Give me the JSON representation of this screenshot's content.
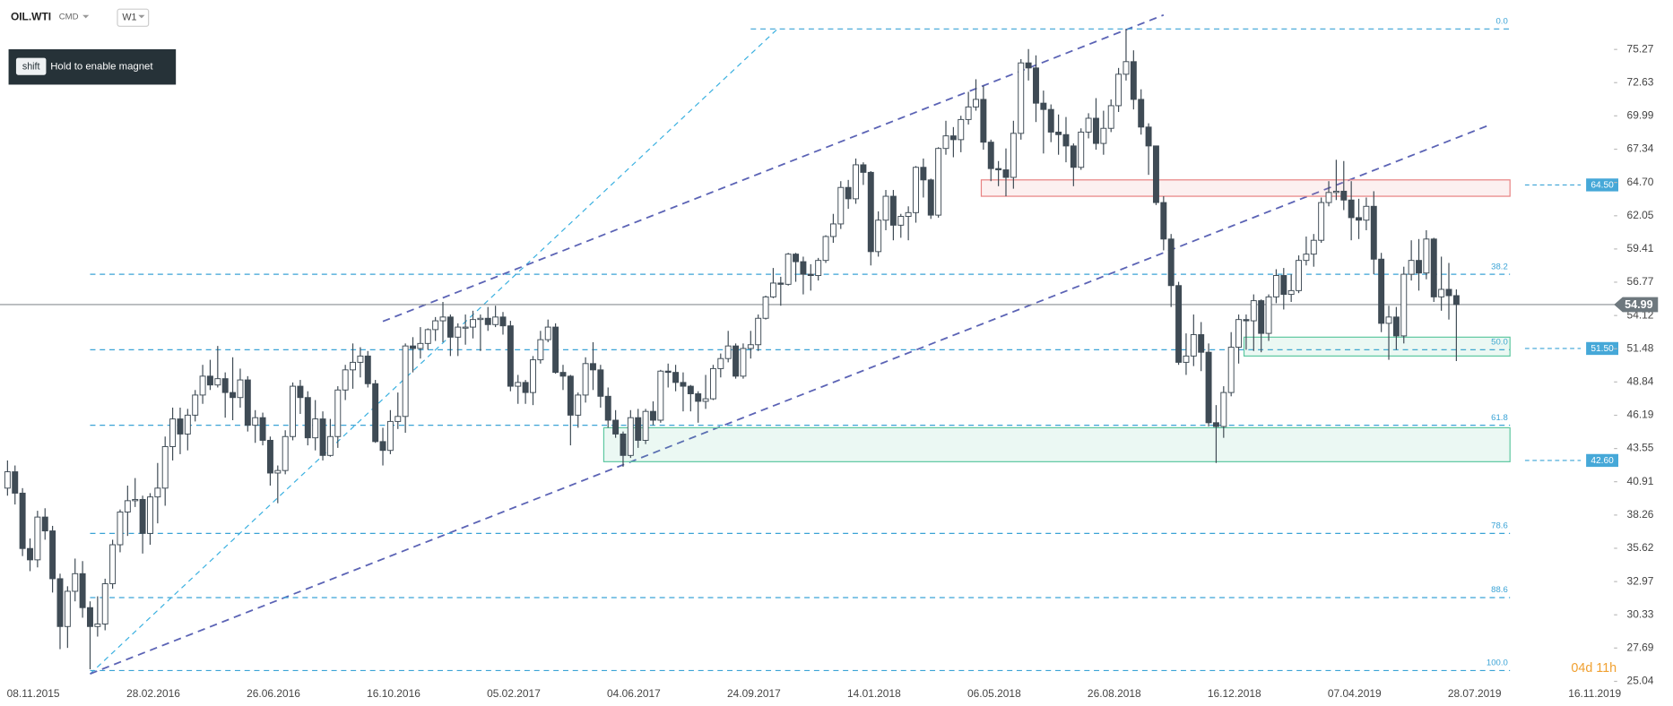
{
  "header": {
    "symbol": "OIL.WTI",
    "market": "CMD",
    "timeframe": "W1"
  },
  "hint": {
    "key": "shift",
    "text": "Hold to enable magnet"
  },
  "countdown": "04d 11h",
  "chart_data": {
    "type": "candlestick",
    "up_color": "#ffffff",
    "down_color": "#3f4b55",
    "outline_color": "#3f4b55",
    "categories": [
      null,
      null,
      null,
      "08.11.2015",
      null,
      null,
      null,
      null,
      null,
      null,
      null,
      null,
      null,
      null,
      null,
      null,
      null,
      null,
      null,
      "28.02.2016",
      null,
      null,
      null,
      null,
      null,
      null,
      null,
      null,
      null,
      null,
      null,
      null,
      null,
      null,
      null,
      "26.06.2016",
      null,
      null,
      null,
      null,
      null,
      null,
      null,
      null,
      null,
      null,
      null,
      null,
      null,
      null,
      null,
      "16.10.2016",
      null,
      null,
      null,
      null,
      null,
      null,
      null,
      null,
      null,
      null,
      null,
      null,
      null,
      null,
      null,
      "05.02.2017",
      null,
      null,
      null,
      null,
      null,
      null,
      null,
      null,
      null,
      null,
      null,
      null,
      null,
      null,
      null,
      "04.06.2017",
      null,
      null,
      null,
      null,
      null,
      null,
      null,
      null,
      null,
      null,
      null,
      null,
      null,
      null,
      null,
      "24.09.2017",
      null,
      null,
      null,
      null,
      null,
      null,
      null,
      null,
      null,
      null,
      null,
      null,
      null,
      null,
      null,
      "14.01.2018",
      null,
      null,
      null,
      null,
      null,
      null,
      null,
      null,
      null,
      null,
      null,
      null,
      null,
      null,
      null,
      "06.05.2018",
      null,
      null,
      null,
      null,
      null,
      null,
      null,
      null,
      null,
      null,
      null,
      null,
      null,
      null,
      null,
      "26.08.2018",
      null,
      null,
      null,
      null,
      null,
      null,
      null,
      null,
      null,
      null,
      null,
      null,
      null,
      null,
      null,
      "16.12.2018",
      null,
      null,
      null,
      null,
      null,
      null,
      null,
      null,
      null,
      null,
      null,
      null,
      null,
      null,
      null,
      "07.04.2019",
      null,
      null,
      null,
      null,
      null,
      null,
      null,
      null,
      null,
      null,
      null,
      null,
      null,
      null,
      null,
      "28.07.2019",
      null,
      null,
      null,
      null,
      null,
      null,
      null,
      null,
      null,
      null,
      null,
      null,
      null,
      null,
      null,
      "16.11.2019",
      null,
      null
    ],
    "ohlc": [
      [
        40.4,
        42.6,
        39.8,
        41.7
      ],
      [
        41.7,
        42.2,
        39.1,
        40.0
      ],
      [
        40.0,
        40.4,
        35.0,
        35.6
      ],
      [
        35.6,
        36.4,
        33.8,
        34.7
      ],
      [
        34.7,
        38.6,
        34.1,
        38.1
      ],
      [
        38.1,
        38.8,
        36.3,
        37.0
      ],
      [
        37.0,
        37.4,
        32.1,
        33.2
      ],
      [
        33.2,
        33.6,
        27.6,
        29.4
      ],
      [
        29.4,
        32.6,
        27.7,
        32.2
      ],
      [
        32.2,
        34.8,
        31.4,
        33.6
      ],
      [
        33.6,
        34.6,
        30.1,
        30.9
      ],
      [
        30.9,
        31.4,
        26.0,
        29.4
      ],
      [
        29.4,
        31.8,
        28.6,
        29.6
      ],
      [
        29.6,
        33.2,
        29.1,
        32.8
      ],
      [
        32.8,
        36.3,
        32.4,
        35.9
      ],
      [
        35.9,
        38.7,
        35.3,
        38.5
      ],
      [
        38.5,
        40.6,
        36.6,
        39.4
      ],
      [
        39.4,
        41.2,
        38.9,
        39.5
      ],
      [
        39.5,
        39.8,
        35.2,
        36.8
      ],
      [
        36.8,
        40.0,
        35.9,
        39.7
      ],
      [
        39.7,
        42.4,
        37.6,
        40.4
      ],
      [
        40.4,
        44.5,
        39.0,
        43.7
      ],
      [
        43.7,
        46.8,
        42.6,
        45.9
      ],
      [
        45.9,
        46.8,
        43.1,
        44.7
      ],
      [
        44.7,
        46.7,
        43.4,
        46.2
      ],
      [
        46.2,
        48.2,
        45.7,
        47.8
      ],
      [
        47.8,
        50.2,
        47.1,
        49.3
      ],
      [
        49.3,
        50.6,
        48.2,
        48.6
      ],
      [
        48.6,
        51.7,
        48.4,
        49.1
      ],
      [
        49.1,
        49.6,
        46.0,
        48.0
      ],
      [
        48.0,
        50.8,
        45.8,
        47.6
      ],
      [
        47.6,
        49.9,
        46.8,
        49.0
      ],
      [
        49.0,
        49.3,
        44.9,
        45.4
      ],
      [
        45.4,
        46.6,
        44.0,
        46.0
      ],
      [
        46.0,
        46.4,
        43.8,
        44.2
      ],
      [
        44.2,
        44.5,
        40.6,
        41.6
      ],
      [
        41.6,
        42.2,
        39.2,
        41.8
      ],
      [
        41.8,
        45.0,
        41.5,
        44.5
      ],
      [
        44.5,
        48.8,
        44.2,
        48.5
      ],
      [
        48.5,
        49.0,
        46.3,
        47.6
      ],
      [
        47.6,
        48.1,
        43.8,
        44.4
      ],
      [
        44.4,
        47.4,
        43.4,
        45.9
      ],
      [
        45.9,
        46.5,
        42.6,
        43.0
      ],
      [
        43.0,
        45.9,
        42.9,
        44.5
      ],
      [
        44.5,
        48.5,
        43.6,
        48.2
      ],
      [
        48.2,
        50.2,
        47.4,
        49.8
      ],
      [
        49.8,
        51.9,
        48.3,
        50.4
      ],
      [
        50.4,
        51.6,
        49.2,
        50.9
      ],
      [
        50.9,
        51.3,
        48.4,
        48.7
      ],
      [
        48.7,
        49.0,
        44.0,
        44.1
      ],
      [
        44.1,
        45.2,
        42.2,
        43.4
      ],
      [
        43.4,
        46.6,
        43.1,
        45.7
      ],
      [
        45.7,
        48.0,
        45.1,
        46.1
      ],
      [
        46.1,
        51.9,
        44.8,
        51.7
      ],
      [
        51.7,
        52.4,
        49.6,
        51.5
      ],
      [
        51.5,
        53.2,
        50.7,
        51.9
      ],
      [
        51.9,
        53.1,
        51.4,
        53.0
      ],
      [
        53.0,
        54.0,
        52.1,
        53.7
      ],
      [
        53.7,
        55.2,
        52.0,
        54.0
      ],
      [
        54.0,
        54.2,
        50.9,
        52.4
      ],
      [
        52.4,
        53.5,
        50.9,
        53.2
      ],
      [
        53.2,
        54.2,
        51.8,
        53.2
      ],
      [
        53.2,
        54.5,
        52.3,
        53.8
      ],
      [
        53.8,
        54.2,
        51.3,
        53.9
      ],
      [
        53.9,
        54.8,
        52.9,
        53.4
      ],
      [
        53.4,
        54.9,
        53.2,
        54.0
      ],
      [
        54.0,
        54.4,
        52.6,
        53.3
      ],
      [
        53.3,
        53.7,
        48.1,
        48.5
      ],
      [
        48.5,
        49.4,
        47.1,
        48.8
      ],
      [
        48.8,
        49.0,
        47.1,
        48.0
      ],
      [
        48.0,
        50.9,
        47.0,
        50.6
      ],
      [
        50.6,
        52.9,
        50.3,
        52.2
      ],
      [
        52.2,
        53.8,
        52.0,
        53.2
      ],
      [
        53.2,
        53.5,
        49.5,
        49.6
      ],
      [
        49.6,
        50.2,
        48.2,
        49.3
      ],
      [
        49.3,
        49.4,
        43.8,
        46.2
      ],
      [
        46.2,
        48.0,
        45.2,
        47.8
      ],
      [
        47.8,
        50.8,
        47.2,
        50.3
      ],
      [
        50.3,
        52.0,
        48.2,
        49.8
      ],
      [
        49.8,
        50.2,
        46.8,
        47.7
      ],
      [
        47.7,
        48.4,
        45.2,
        45.8
      ],
      [
        45.8,
        46.6,
        44.4,
        44.7
      ],
      [
        44.7,
        44.9,
        42.1,
        43.0
      ],
      [
        43.0,
        46.6,
        42.8,
        46.0
      ],
      [
        46.0,
        46.7,
        43.6,
        44.2
      ],
      [
        44.2,
        46.7,
        43.9,
        46.5
      ],
      [
        46.5,
        47.3,
        45.4,
        45.8
      ],
      [
        45.8,
        49.8,
        45.6,
        49.7
      ],
      [
        49.7,
        50.3,
        48.4,
        49.6
      ],
      [
        49.6,
        50.2,
        48.1,
        48.8
      ],
      [
        48.8,
        49.6,
        46.5,
        48.5
      ],
      [
        48.5,
        48.6,
        46.5,
        47.9
      ],
      [
        47.9,
        48.1,
        45.6,
        47.3
      ],
      [
        47.3,
        49.4,
        46.7,
        47.5
      ],
      [
        47.5,
        50.2,
        47.4,
        49.9
      ],
      [
        49.9,
        51.1,
        49.2,
        50.7
      ],
      [
        50.7,
        52.9,
        50.4,
        51.7
      ],
      [
        51.7,
        51.9,
        49.1,
        49.3
      ],
      [
        49.3,
        51.9,
        49.1,
        51.5
      ],
      [
        51.5,
        52.9,
        50.7,
        51.8
      ],
      [
        51.8,
        54.2,
        51.3,
        53.9
      ],
      [
        53.9,
        55.7,
        53.8,
        55.6
      ],
      [
        55.6,
        57.9,
        55.5,
        56.7
      ],
      [
        56.7,
        57.2,
        54.9,
        56.6
      ],
      [
        56.6,
        59.1,
        56.5,
        59.0
      ],
      [
        59.0,
        59.1,
        56.8,
        58.4
      ],
      [
        58.4,
        58.8,
        55.8,
        57.4
      ],
      [
        57.4,
        58.2,
        56.1,
        57.3
      ],
      [
        57.3,
        58.7,
        56.9,
        58.5
      ],
      [
        58.5,
        60.5,
        58.3,
        60.4
      ],
      [
        60.4,
        62.2,
        59.9,
        61.4
      ],
      [
        61.4,
        64.8,
        61.0,
        64.3
      ],
      [
        64.3,
        64.9,
        62.6,
        63.4
      ],
      [
        63.4,
        66.6,
        63.0,
        66.1
      ],
      [
        66.1,
        66.3,
        64.5,
        65.5
      ],
      [
        65.5,
        65.6,
        58.1,
        59.2
      ],
      [
        59.2,
        62.4,
        58.8,
        61.7
      ],
      [
        61.7,
        64.1,
        60.9,
        63.6
      ],
      [
        63.6,
        64.1,
        60.1,
        61.3
      ],
      [
        61.3,
        62.2,
        60.3,
        62.0
      ],
      [
        62.0,
        62.8,
        60.1,
        62.3
      ],
      [
        62.3,
        66.0,
        61.5,
        65.9
      ],
      [
        65.9,
        66.6,
        63.5,
        64.9
      ],
      [
        64.9,
        65.0,
        61.8,
        62.1
      ],
      [
        62.1,
        67.5,
        61.9,
        67.4
      ],
      [
        67.4,
        69.6,
        66.9,
        68.4
      ],
      [
        68.4,
        69.1,
        66.7,
        68.1
      ],
      [
        68.1,
        70.0,
        67.1,
        69.7
      ],
      [
        69.7,
        71.9,
        69.3,
        70.7
      ],
      [
        70.7,
        72.9,
        70.4,
        71.3
      ],
      [
        71.3,
        72.4,
        67.3,
        67.9
      ],
      [
        67.9,
        68.1,
        64.8,
        65.8
      ],
      [
        65.8,
        66.4,
        64.4,
        65.7
      ],
      [
        65.7,
        67.4,
        63.6,
        65.1
      ],
      [
        65.1,
        69.6,
        64.2,
        68.6
      ],
      [
        68.6,
        74.5,
        68.1,
        74.2
      ],
      [
        74.2,
        75.3,
        72.8,
        73.8
      ],
      [
        73.8,
        74.8,
        69.5,
        71.0
      ],
      [
        71.0,
        72.0,
        67.0,
        70.5
      ],
      [
        70.5,
        70.9,
        67.9,
        68.7
      ],
      [
        68.7,
        70.1,
        66.9,
        68.5
      ],
      [
        68.5,
        69.9,
        66.3,
        67.6
      ],
      [
        67.6,
        67.8,
        64.4,
        65.9
      ],
      [
        65.9,
        69.0,
        65.7,
        68.7
      ],
      [
        68.7,
        70.2,
        68.2,
        69.8
      ],
      [
        69.8,
        71.4,
        67.3,
        67.8
      ],
      [
        67.8,
        70.4,
        66.9,
        69.0
      ],
      [
        69.0,
        71.3,
        68.7,
        70.8
      ],
      [
        70.8,
        73.8,
        70.3,
        73.3
      ],
      [
        73.3,
        76.9,
        72.8,
        74.3
      ],
      [
        74.3,
        75.2,
        70.5,
        71.3
      ],
      [
        71.3,
        72.1,
        68.5,
        69.1
      ],
      [
        69.1,
        69.4,
        65.3,
        67.6
      ],
      [
        67.6,
        67.6,
        62.9,
        63.1
      ],
      [
        63.1,
        63.6,
        59.3,
        60.2
      ],
      [
        60.2,
        60.6,
        54.8,
        56.5
      ],
      [
        56.5,
        56.8,
        50.2,
        50.4
      ],
      [
        50.4,
        52.7,
        49.4,
        50.9
      ],
      [
        50.9,
        54.2,
        50.1,
        52.6
      ],
      [
        52.6,
        53.6,
        49.7,
        51.2
      ],
      [
        51.2,
        51.9,
        45.3,
        45.6
      ],
      [
        45.6,
        47.0,
        42.4,
        45.3
      ],
      [
        45.3,
        48.5,
        44.4,
        48.0
      ],
      [
        48.0,
        52.8,
        47.7,
        51.6
      ],
      [
        51.6,
        54.2,
        50.3,
        53.8
      ],
      [
        53.8,
        54.2,
        51.4,
        53.7
      ],
      [
        53.7,
        55.8,
        51.3,
        55.3
      ],
      [
        55.3,
        55.4,
        51.2,
        52.7
      ],
      [
        52.7,
        55.8,
        52.1,
        55.6
      ],
      [
        55.6,
        57.8,
        55.1,
        57.3
      ],
      [
        57.3,
        57.9,
        54.6,
        55.8
      ],
      [
        55.8,
        57.4,
        55.2,
        56.1
      ],
      [
        56.1,
        58.9,
        55.9,
        58.5
      ],
      [
        58.5,
        60.4,
        58.1,
        59.0
      ],
      [
        59.0,
        60.6,
        58.0,
        60.1
      ],
      [
        60.1,
        63.5,
        59.9,
        63.1
      ],
      [
        63.1,
        64.8,
        62.8,
        63.9
      ],
      [
        63.9,
        66.5,
        63.3,
        64.0
      ],
      [
        64.0,
        66.4,
        62.5,
        63.3
      ],
      [
        63.3,
        64.8,
        60.1,
        61.9
      ],
      [
        61.9,
        63.4,
        60.2,
        61.7
      ],
      [
        61.7,
        63.5,
        60.9,
        62.8
      ],
      [
        62.8,
        64.0,
        57.4,
        58.6
      ],
      [
        58.6,
        59.1,
        52.8,
        53.5
      ],
      [
        53.5,
        54.9,
        50.6,
        54.0
      ],
      [
        54.0,
        54.8,
        51.4,
        52.5
      ],
      [
        52.5,
        58.0,
        51.9,
        57.4
      ],
      [
        57.4,
        60.1,
        56.9,
        58.5
      ],
      [
        58.5,
        60.2,
        56.1,
        57.5
      ],
      [
        57.5,
        60.9,
        57.0,
        60.2
      ],
      [
        60.2,
        60.3,
        55.2,
        55.6
      ],
      [
        55.6,
        58.8,
        54.5,
        56.2
      ],
      [
        56.2,
        58.3,
        53.8,
        55.7
      ],
      [
        55.7,
        56.2,
        50.5,
        54.99
      ],
      null,
      null,
      null,
      null,
      null,
      null,
      null,
      null,
      null,
      null,
      null,
      null,
      null,
      null,
      null,
      null,
      null,
      null,
      null,
      null
    ],
    "ylim": [
      24.7,
      79.2
    ],
    "yticks": [
      75.27,
      72.63,
      69.99,
      67.34,
      {
        "value": 64.7,
        "label": "64.70"
      },
      62.05,
      59.41,
      56.77,
      54.12,
      51.48,
      48.84,
      46.19,
      43.55,
      40.91,
      38.26,
      35.62,
      32.97,
      30.33,
      27.69,
      25.04
    ],
    "last_price": 54.99,
    "fib_levels": [
      {
        "label": "0.0",
        "price": 76.9
      },
      {
        "label": "38.2",
        "price": 57.4
      },
      {
        "label": "50.0",
        "price": 51.4
      },
      {
        "label": "61.8",
        "price": 45.4
      },
      {
        "label": "78.6",
        "price": 36.8
      },
      {
        "label": "88.6",
        "price": 31.7
      },
      {
        "label": "100.0",
        "price": 25.9
      }
    ],
    "zones": [
      {
        "high": 64.9,
        "low": 63.6,
        "color": "#e88080",
        "tag": {
          "value": 64.5,
          "label": "64.50"
        }
      },
      {
        "high": 52.4,
        "low": 50.9,
        "color": "#5cc7a0",
        "tag": {
          "value": 51.5,
          "label": "51.50"
        }
      },
      {
        "high": 45.2,
        "low": 42.5,
        "color": "#5cc7a0",
        "tag": {
          "value": 42.6,
          "label": "42.60"
        }
      }
    ]
  }
}
